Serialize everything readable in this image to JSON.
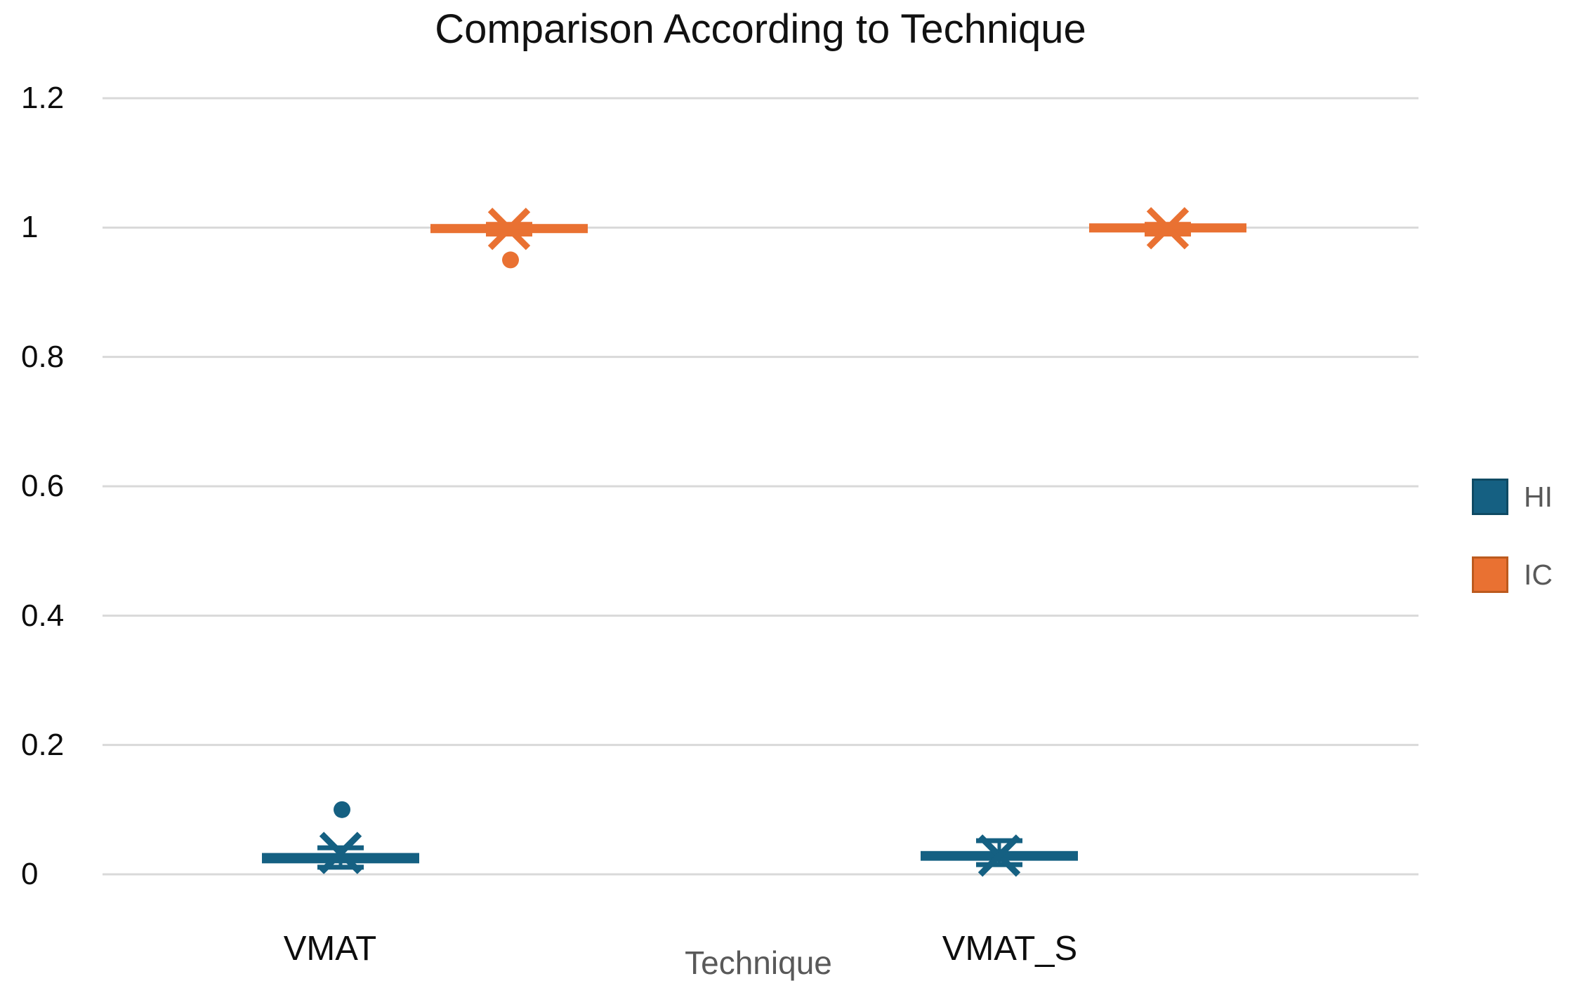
{
  "title": "Comparison According to Technique",
  "x_axis": {
    "title": "Technique",
    "categories": [
      "VMAT",
      "VMAT_S"
    ]
  },
  "y_axis": {
    "ticks": [
      "1.2",
      "1",
      "0.8",
      "0.6",
      "0.4",
      "0.2",
      "0"
    ],
    "min": 0,
    "max": 1.2,
    "step": 0.2
  },
  "legend": [
    {
      "label": "HI",
      "color": "#156082"
    },
    {
      "label": "IC",
      "color": "#E97132"
    }
  ],
  "colors": {
    "hi": "#156082",
    "ic": "#E97132",
    "gridline": "#D9D9D9",
    "axis_text": "#0d0d0d",
    "secondary_text": "#595959",
    "background": "#FFFFFF"
  },
  "chart_data": {
    "type": "boxplot",
    "title": "Comparison According to Technique",
    "xlabel": "Technique",
    "ylabel": "",
    "categories": [
      "VMAT",
      "VMAT_S"
    ],
    "ylim": [
      0,
      1.2
    ],
    "grid": true,
    "legend_position": "right",
    "series": [
      {
        "name": "HI",
        "color": "#156082",
        "boxes": [
          {
            "category": "VMAT",
            "min": 0.011,
            "q1": 0.017,
            "median": 0.025,
            "q3": 0.033,
            "max": 0.041,
            "mean": 0.033,
            "outliers": [
              0.1
            ]
          },
          {
            "category": "VMAT_S",
            "min": 0.015,
            "q1": 0.021,
            "median": 0.03,
            "q3": 0.036,
            "max": 0.052,
            "mean": 0.029,
            "outliers": []
          }
        ]
      },
      {
        "name": "IC",
        "color": "#E97132",
        "boxes": [
          {
            "category": "VMAT",
            "min": 0.99,
            "q1": 0.995,
            "median": 1.0,
            "q3": 1.002,
            "max": 1.005,
            "mean": 0.998,
            "outliers": [
              0.95
            ]
          },
          {
            "category": "VMAT_S",
            "min": 0.99,
            "q1": 0.997,
            "median": 1.0,
            "q3": 1.002,
            "max": 1.005,
            "mean": 0.999,
            "outliers": []
          }
        ]
      }
    ]
  }
}
